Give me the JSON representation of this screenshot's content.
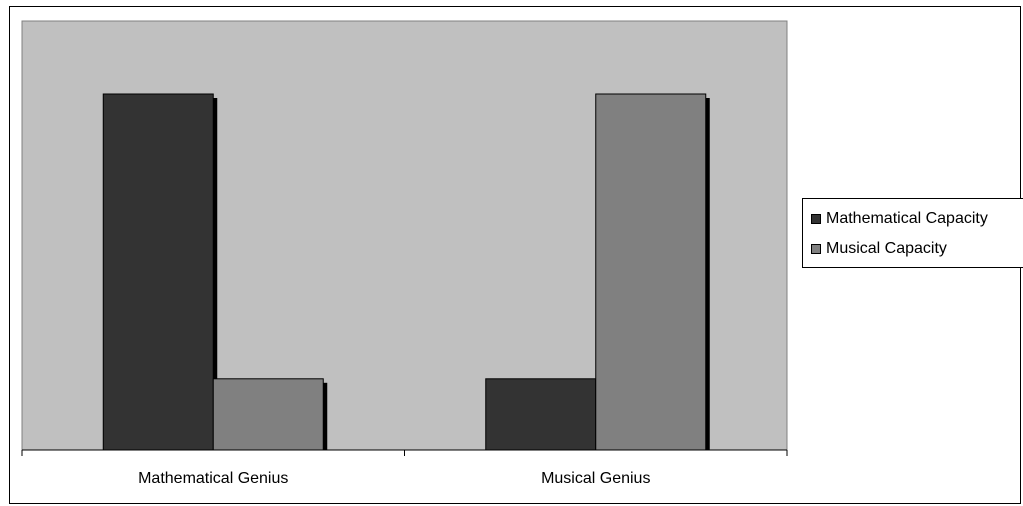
{
  "chart_data": {
    "type": "bar",
    "categories": [
      "Mathematical Genius",
      "Musical Genius"
    ],
    "series": [
      {
        "name": "Mathematical Capacity",
        "values": [
          100,
          20
        ],
        "color": "#333333"
      },
      {
        "name": "Musical Capacity",
        "values": [
          20,
          100
        ],
        "color": "#808080"
      }
    ],
    "ylim": [
      0,
      100
    ],
    "title": "",
    "xlabel": "",
    "ylabel": "",
    "grid": false,
    "legend_position": "right",
    "plot_background": "#c0c0c0",
    "shadow_color": "#000000"
  }
}
